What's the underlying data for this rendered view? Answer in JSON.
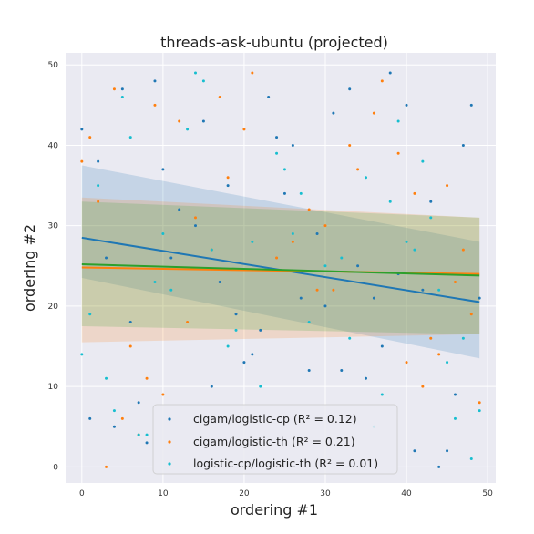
{
  "chart_data": {
    "type": "scatter",
    "title": "threads-ask-ubuntu (projected)",
    "xlabel": "ordering #1",
    "ylabel": "ordering #2",
    "xlim": [
      -2,
      51
    ],
    "ylim": [
      -2,
      51.5
    ],
    "xticks": [
      0,
      10,
      20,
      30,
      40,
      50
    ],
    "yticks": [
      0,
      10,
      20,
      30,
      40,
      50
    ],
    "grid": true,
    "legend_position": "lower-center",
    "series": [
      {
        "name": "cigam/logistic-cp",
        "r2_label": "(R² = 0.12)",
        "color": "#1f77b4",
        "points": [
          [
            0,
            42
          ],
          [
            1,
            6
          ],
          [
            2,
            38
          ],
          [
            3,
            26
          ],
          [
            4,
            5
          ],
          [
            5,
            47
          ],
          [
            6,
            18
          ],
          [
            7,
            8
          ],
          [
            8,
            3
          ],
          [
            9,
            48
          ],
          [
            10,
            37
          ],
          [
            11,
            26
          ],
          [
            12,
            32
          ],
          [
            14,
            30
          ],
          [
            15,
            43
          ],
          [
            16,
            10
          ],
          [
            17,
            23
          ],
          [
            18,
            35
          ],
          [
            19,
            19
          ],
          [
            20,
            13
          ],
          [
            21,
            14
          ],
          [
            22,
            17
          ],
          [
            23,
            46
          ],
          [
            24,
            41
          ],
          [
            25,
            34
          ],
          [
            26,
            40
          ],
          [
            27,
            21
          ],
          [
            28,
            12
          ],
          [
            29,
            29
          ],
          [
            30,
            20
          ],
          [
            31,
            44
          ],
          [
            32,
            12
          ],
          [
            33,
            47
          ],
          [
            34,
            25
          ],
          [
            35,
            11
          ],
          [
            36,
            21
          ],
          [
            37,
            15
          ],
          [
            38,
            49
          ],
          [
            39,
            24
          ],
          [
            40,
            45
          ],
          [
            41,
            2
          ],
          [
            42,
            22
          ],
          [
            43,
            33
          ],
          [
            44,
            0
          ],
          [
            45,
            2
          ],
          [
            46,
            9
          ],
          [
            47,
            40
          ],
          [
            48,
            45
          ],
          [
            49,
            21
          ]
        ],
        "fit": {
          "y_at_0": 28.5,
          "y_at_49": 20.5,
          "ci_low_at_0": 23.5,
          "ci_high_at_0": 37.5,
          "ci_low_at_49": 13.5,
          "ci_high_at_49": 28
        }
      },
      {
        "name": "cigam/logistic-th",
        "r2_label": "(R² = 0.21)",
        "color": "#ff7f0e",
        "points": [
          [
            0,
            38
          ],
          [
            1,
            41
          ],
          [
            2,
            33
          ],
          [
            3,
            0
          ],
          [
            4,
            47
          ],
          [
            5,
            6
          ],
          [
            6,
            15
          ],
          [
            7,
            4
          ],
          [
            8,
            11
          ],
          [
            9,
            45
          ],
          [
            10,
            9
          ],
          [
            12,
            43
          ],
          [
            13,
            18
          ],
          [
            14,
            31
          ],
          [
            16,
            27
          ],
          [
            17,
            46
          ],
          [
            18,
            36
          ],
          [
            20,
            42
          ],
          [
            21,
            49
          ],
          [
            24,
            26
          ],
          [
            26,
            28
          ],
          [
            28,
            32
          ],
          [
            29,
            22
          ],
          [
            30,
            30
          ],
          [
            31,
            22
          ],
          [
            33,
            40
          ],
          [
            34,
            37
          ],
          [
            36,
            44
          ],
          [
            37,
            48
          ],
          [
            39,
            39
          ],
          [
            40,
            13
          ],
          [
            41,
            34
          ],
          [
            42,
            10
          ],
          [
            43,
            16
          ],
          [
            44,
            14
          ],
          [
            45,
            35
          ],
          [
            46,
            23
          ],
          [
            47,
            27
          ],
          [
            48,
            19
          ],
          [
            49,
            8
          ]
        ],
        "fit": {
          "y_at_0": 24.8,
          "y_at_49": 24.0,
          "ci_low_at_0": 15.5,
          "ci_high_at_0": 33.5,
          "ci_low_at_49": 16.5,
          "ci_high_at_49": 31
        }
      },
      {
        "name": "logistic-cp/logistic-th",
        "r2_label": "(R² = 0.01)",
        "color": "#17becf",
        "points": [
          [
            0,
            14
          ],
          [
            1,
            19
          ],
          [
            2,
            35
          ],
          [
            3,
            11
          ],
          [
            4,
            7
          ],
          [
            5,
            46
          ],
          [
            6,
            41
          ],
          [
            7,
            4
          ],
          [
            8,
            4
          ],
          [
            9,
            23
          ],
          [
            10,
            29
          ],
          [
            11,
            22
          ],
          [
            13,
            42
          ],
          [
            14,
            49
          ],
          [
            15,
            48
          ],
          [
            16,
            27
          ],
          [
            18,
            15
          ],
          [
            19,
            17
          ],
          [
            21,
            28
          ],
          [
            22,
            10
          ],
          [
            24,
            39
          ],
          [
            25,
            37
          ],
          [
            26,
            29
          ],
          [
            27,
            34
          ],
          [
            28,
            18
          ],
          [
            30,
            25
          ],
          [
            32,
            26
          ],
          [
            33,
            16
          ],
          [
            35,
            36
          ],
          [
            36,
            5
          ],
          [
            37,
            9
          ],
          [
            38,
            33
          ],
          [
            39,
            43
          ],
          [
            40,
            28
          ],
          [
            41,
            27
          ],
          [
            42,
            38
          ],
          [
            43,
            31
          ],
          [
            44,
            22
          ],
          [
            45,
            13
          ],
          [
            46,
            6
          ],
          [
            47,
            16
          ],
          [
            48,
            1
          ],
          [
            49,
            7
          ]
        ],
        "fit": {
          "y_at_0": 25.2,
          "y_at_49": 23.8,
          "ci_low_at_0": 17.5,
          "ci_high_at_0": 33,
          "ci_low_at_49": 16.5,
          "ci_high_at_49": 31
        }
      }
    ],
    "fit_line_colors": [
      "#1f77b4",
      "#ff7f0e",
      "#2ca02c"
    ]
  }
}
